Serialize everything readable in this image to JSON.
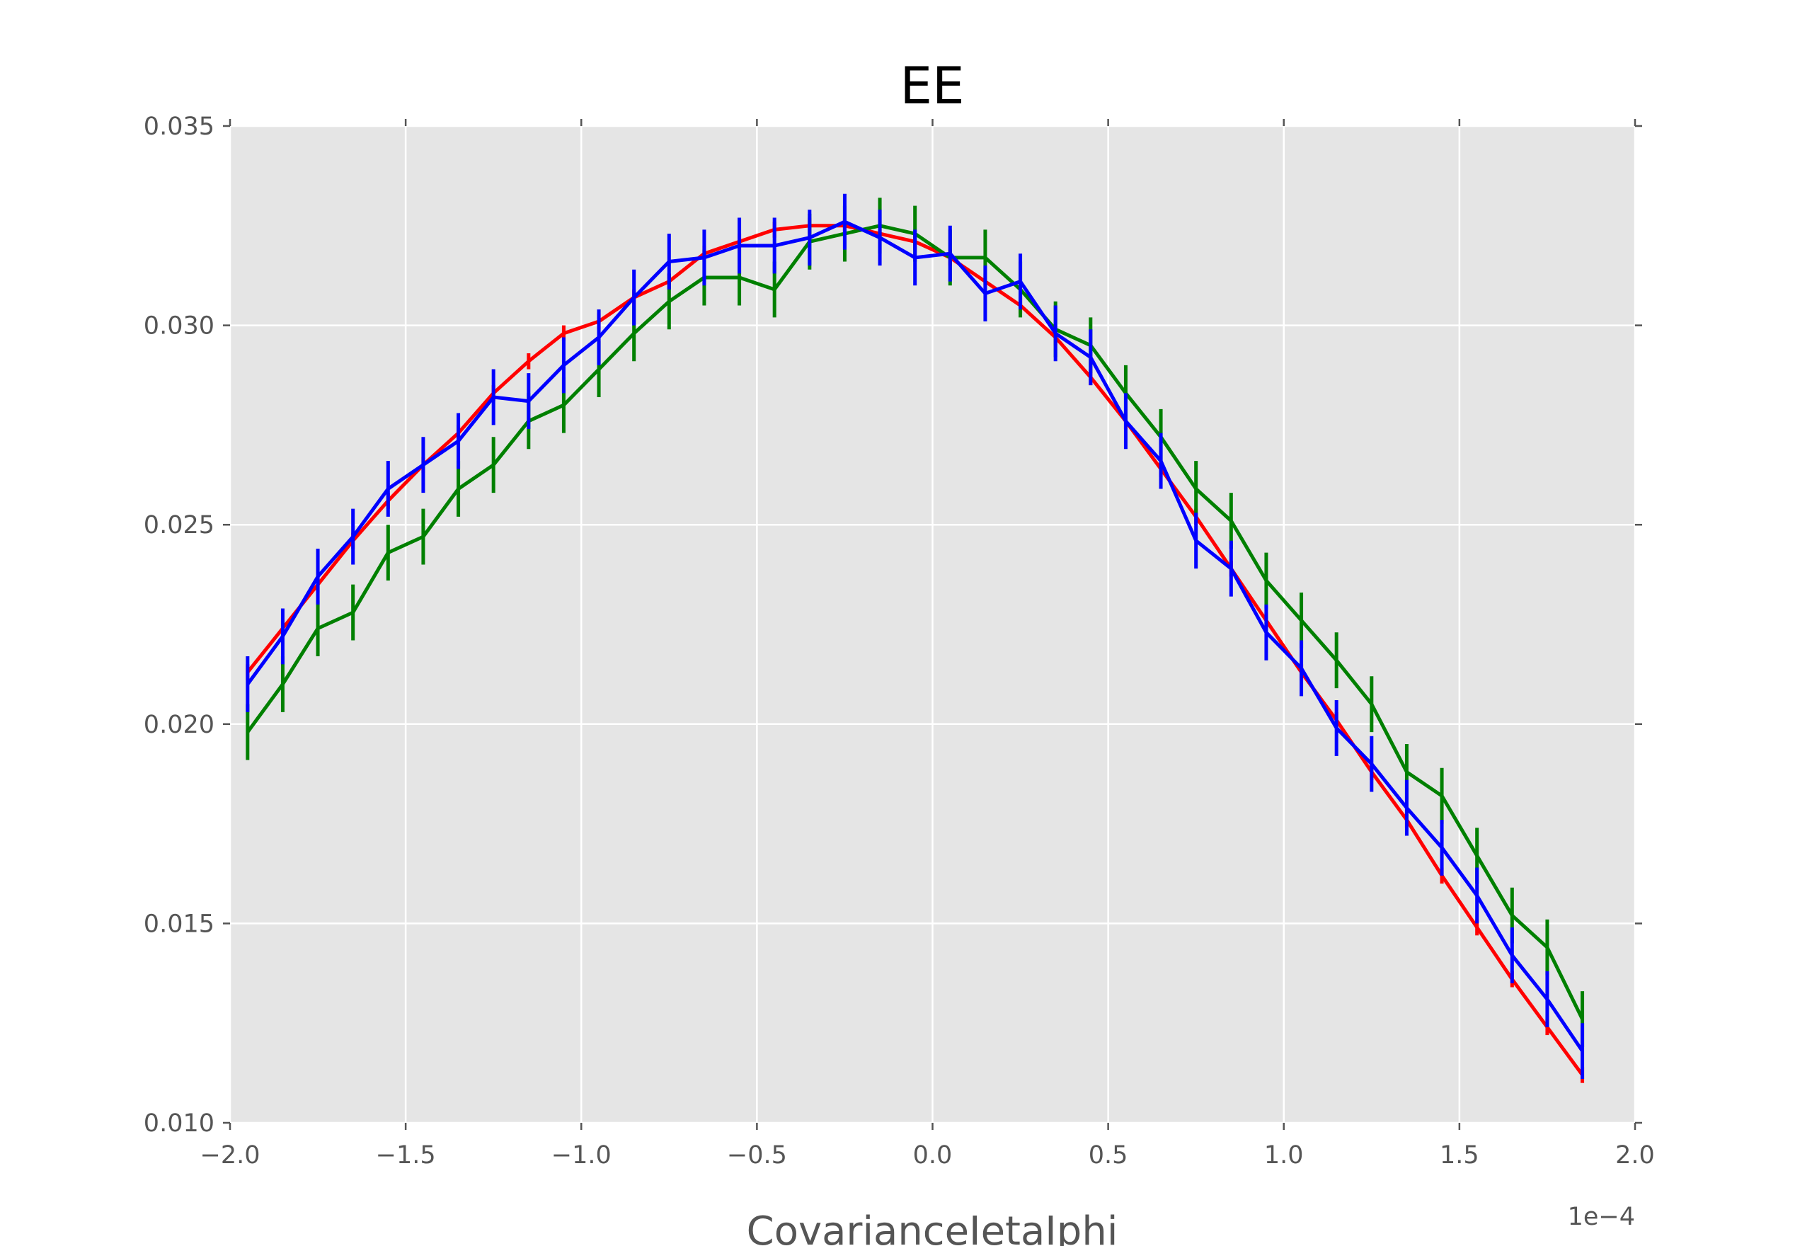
{
  "chart_data": {
    "type": "line",
    "title": "EE",
    "xlabel": "CovarianceIetaIphi",
    "ylabel": "",
    "x_offset_label": "1e−4",
    "xlim": [
      -2.0,
      2.0
    ],
    "ylim": [
      0.01,
      0.035
    ],
    "x_ticks": [
      -2.0,
      -1.5,
      -1.0,
      -0.5,
      0.0,
      0.5,
      1.0,
      1.5,
      2.0
    ],
    "x_tick_labels": [
      "−2.0",
      "−1.5",
      "−1.0",
      "−0.5",
      "0.0",
      "0.5",
      "1.0",
      "1.5",
      "2.0"
    ],
    "y_ticks": [
      0.01,
      0.015,
      0.02,
      0.025,
      0.03,
      0.035
    ],
    "y_tick_labels": [
      "0.010",
      "0.015",
      "0.020",
      "0.025",
      "0.030",
      "0.035"
    ],
    "background_color": "#e5e5e5",
    "grid": true,
    "x": [
      -1.95,
      -1.85,
      -1.75,
      -1.65,
      -1.55,
      -1.45,
      -1.35,
      -1.25,
      -1.15,
      -1.05,
      -0.95,
      -0.85,
      -0.75,
      -0.65,
      -0.55,
      -0.45,
      -0.35,
      -0.25,
      -0.15,
      -0.05,
      0.05,
      0.15,
      0.25,
      0.35,
      0.45,
      0.55,
      0.65,
      0.75,
      0.85,
      0.95,
      1.05,
      1.15,
      1.25,
      1.35,
      1.45,
      1.55,
      1.65,
      1.75,
      1.85
    ],
    "series": [
      {
        "color": "#ff0000",
        "values": [
          0.0213,
          0.0224,
          0.0235,
          0.0246,
          0.0256,
          0.0265,
          0.0273,
          0.0283,
          0.0291,
          0.0298,
          0.0301,
          0.0307,
          0.0311,
          0.0318,
          0.0321,
          0.0324,
          0.0325,
          0.0325,
          0.0323,
          0.0321,
          0.0317,
          0.0311,
          0.0305,
          0.0297,
          0.0287,
          0.0276,
          0.0264,
          0.0252,
          0.0239,
          0.0226,
          0.0213,
          0.0201,
          0.0188,
          0.0176,
          0.0162,
          0.0149,
          0.0136,
          0.0124,
          0.0112
        ],
        "errors": [
          0.0002,
          0.0002,
          0.0002,
          0.0002,
          0.0002,
          0.0002,
          0.0002,
          0.0002,
          0.0002,
          0.0002,
          0.0002,
          0.0002,
          0.0002,
          0.0002,
          0.0002,
          0.0002,
          0.0002,
          0.0002,
          0.0002,
          0.0002,
          0.0002,
          0.0002,
          0.0002,
          0.0002,
          0.0002,
          0.0002,
          0.0002,
          0.0002,
          0.0002,
          0.0002,
          0.0002,
          0.0002,
          0.0002,
          0.0002,
          0.0002,
          0.0002,
          0.0002,
          0.0002,
          0.0002
        ]
      },
      {
        "color": "#008000",
        "values": [
          0.0198,
          0.021,
          0.0224,
          0.0228,
          0.0243,
          0.0247,
          0.0259,
          0.0265,
          0.0276,
          0.028,
          0.0289,
          0.0298,
          0.0306,
          0.0312,
          0.0312,
          0.0309,
          0.0321,
          0.0323,
          0.0325,
          0.0323,
          0.0317,
          0.0317,
          0.0309,
          0.0299,
          0.0295,
          0.0283,
          0.0272,
          0.0259,
          0.0251,
          0.0236,
          0.0226,
          0.0216,
          0.0205,
          0.0188,
          0.0182,
          0.0167,
          0.0152,
          0.0144,
          0.0126
        ],
        "errors": [
          0.0007,
          0.0007,
          0.0007,
          0.0007,
          0.0007,
          0.0007,
          0.0007,
          0.0007,
          0.0007,
          0.0007,
          0.0007,
          0.0007,
          0.0007,
          0.0007,
          0.0007,
          0.0007,
          0.0007,
          0.0007,
          0.0007,
          0.0007,
          0.0007,
          0.0007,
          0.0007,
          0.0007,
          0.0007,
          0.0007,
          0.0007,
          0.0007,
          0.0007,
          0.0007,
          0.0007,
          0.0007,
          0.0007,
          0.0007,
          0.0007,
          0.0007,
          0.0007,
          0.0007,
          0.0007
        ]
      },
      {
        "color": "#0000ff",
        "values": [
          0.021,
          0.0222,
          0.0237,
          0.0247,
          0.0259,
          0.0265,
          0.0271,
          0.0282,
          0.0281,
          0.029,
          0.0297,
          0.0307,
          0.0316,
          0.0317,
          0.032,
          0.032,
          0.0322,
          0.0326,
          0.0322,
          0.0317,
          0.0318,
          0.0308,
          0.0311,
          0.0298,
          0.0292,
          0.0276,
          0.0266,
          0.0246,
          0.0239,
          0.0223,
          0.0214,
          0.0199,
          0.019,
          0.0179,
          0.0169,
          0.0157,
          0.0142,
          0.0131,
          0.0118
        ],
        "errors": [
          0.0007,
          0.0007,
          0.0007,
          0.0007,
          0.0007,
          0.0007,
          0.0007,
          0.0007,
          0.0007,
          0.0007,
          0.0007,
          0.0007,
          0.0007,
          0.0007,
          0.0007,
          0.0007,
          0.0007,
          0.0007,
          0.0007,
          0.0007,
          0.0007,
          0.0007,
          0.0007,
          0.0007,
          0.0007,
          0.0007,
          0.0007,
          0.0007,
          0.0007,
          0.0007,
          0.0007,
          0.0007,
          0.0007,
          0.0007,
          0.0007,
          0.0007,
          0.0007,
          0.0007,
          0.0007
        ]
      }
    ]
  }
}
